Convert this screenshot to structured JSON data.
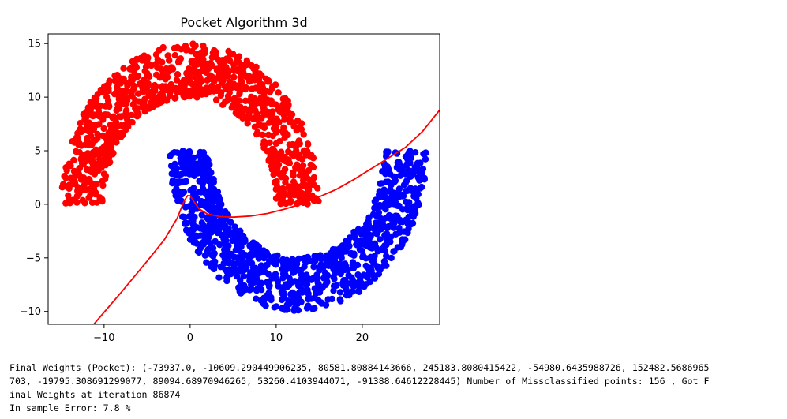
{
  "chart_data": {
    "type": "scatter",
    "title": "Pocket Algorithm 3d",
    "xlim": [
      -16.5,
      29
    ],
    "ylim": [
      -11.2,
      15.9
    ],
    "xticks": [
      -10,
      0,
      10,
      20
    ],
    "xtick_labels": [
      "−10",
      "0",
      "10",
      "20"
    ],
    "yticks": [
      -10,
      -5,
      0,
      5,
      10,
      15
    ],
    "ytick_labels": [
      "−10",
      "−5",
      "0",
      "5",
      "10",
      "15"
    ],
    "grid": false,
    "legend": "none",
    "series": [
      {
        "color": "#ff0000",
        "shape": "upper half-moon",
        "center": [
          0,
          0
        ],
        "inner_radius": 10,
        "outer_radius": 15,
        "points": 1000
      },
      {
        "color": "#0000ff",
        "shape": "lower half-moon",
        "center": [
          12.5,
          5
        ],
        "inner_radius": 10,
        "outer_radius": 15,
        "points": 1000
      }
    ],
    "decision_boundary": {
      "color": "#ff0000",
      "points": [
        [
          -11.2,
          -11.2
        ],
        [
          -8,
          -8.2
        ],
        [
          -5,
          -5.3
        ],
        [
          -3,
          -3.3
        ],
        [
          -1.5,
          -1.3
        ],
        [
          -0.7,
          0.3
        ],
        [
          -0.3,
          0.8
        ],
        [
          0,
          0.8
        ],
        [
          0.4,
          0.3
        ],
        [
          1,
          -0.4
        ],
        [
          2,
          -0.9
        ],
        [
          3.5,
          -1.15
        ],
        [
          5,
          -1.2
        ],
        [
          7,
          -1.1
        ],
        [
          9,
          -0.85
        ],
        [
          11,
          -0.45
        ],
        [
          13,
          0.05
        ],
        [
          15,
          0.7
        ],
        [
          17,
          1.4
        ],
        [
          19,
          2.3
        ],
        [
          21,
          3.3
        ],
        [
          23,
          4.3
        ],
        [
          25,
          5.3
        ],
        [
          27,
          6.8
        ],
        [
          29,
          8.8
        ]
      ]
    }
  },
  "output": {
    "line1": "Final Weights (Pocket): (-73937.0, -10609.290449906235, 80581.80884143666, 245183.8080415422, -54980.6435988726, 152482.5686965",
    "line2": "703, -19795.308691299077, 89094.68970946265, 53260.4103944071, -91388.64612228445) Number of Missclassified points: 156 , Got F",
    "line3": "inal Weights at iteration 86874",
    "line4": "In sample Error: 7.8 %"
  }
}
